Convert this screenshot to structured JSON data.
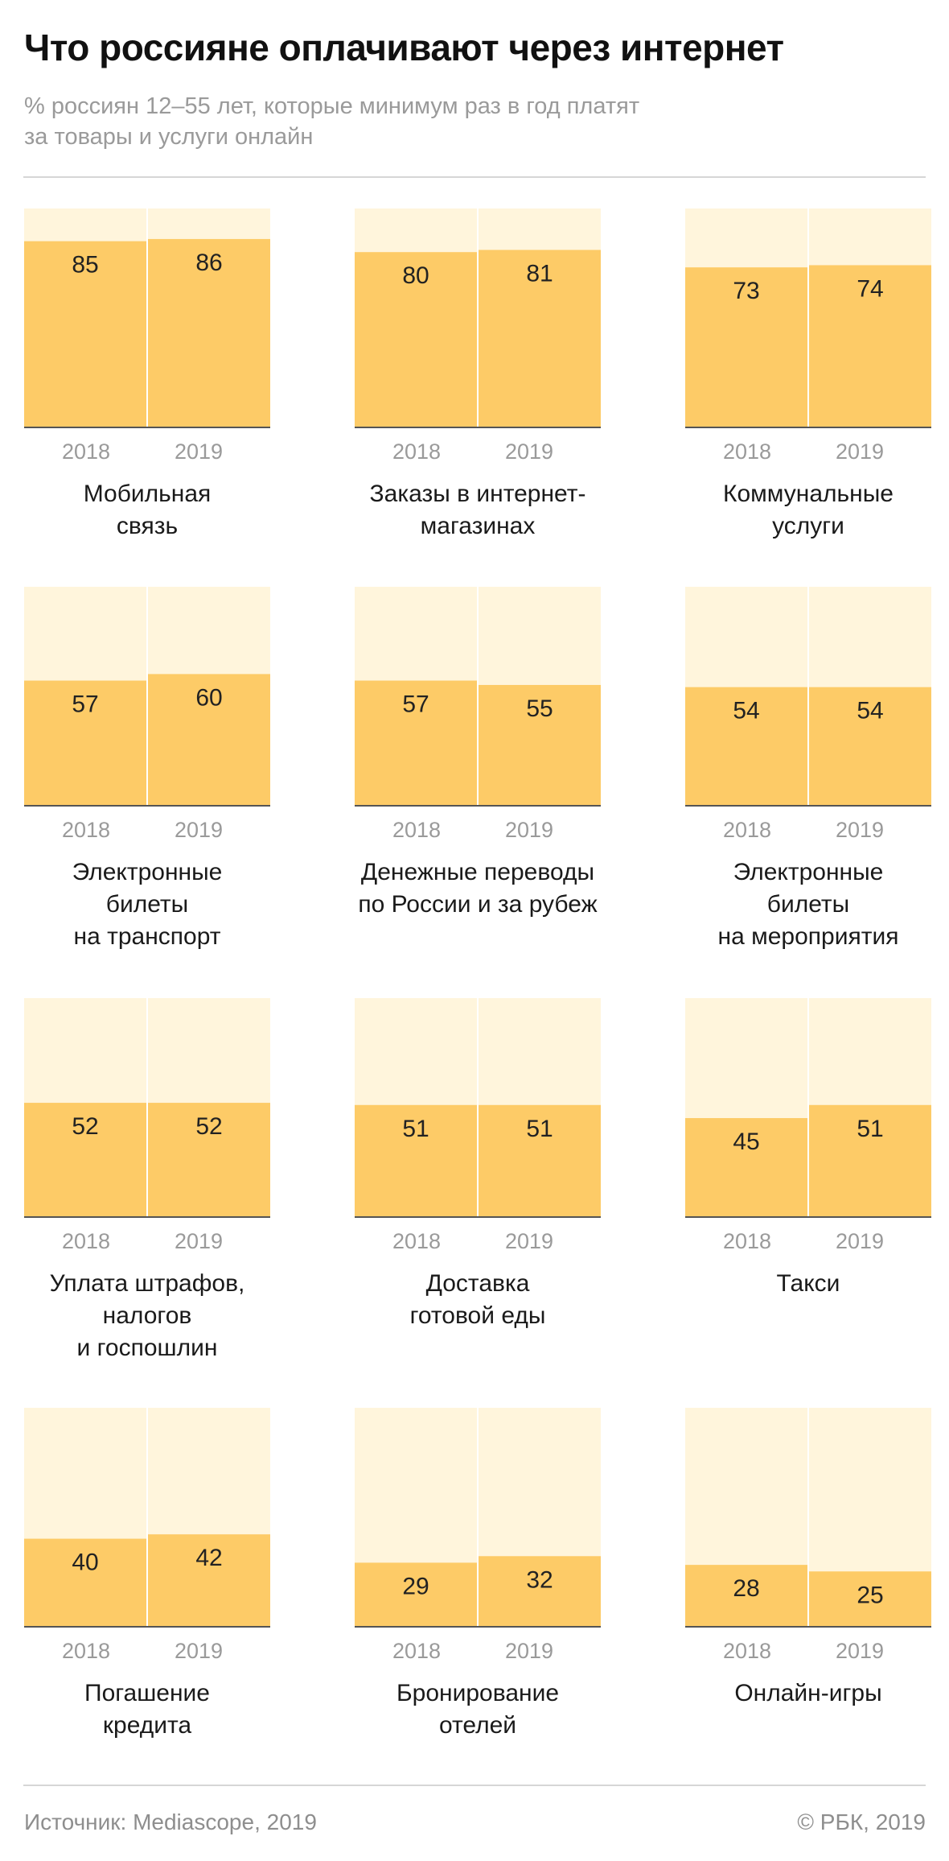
{
  "header": {
    "title": "Что россияне оплачивают через интернет",
    "subtitle": "% россиян 12–55 лет, которые минимум раз в год платят\nза товары и услуги онлайн"
  },
  "footer": {
    "source": "Источник: Mediascope, 2019",
    "copyright": "© РБК, 2019"
  },
  "colors": {
    "bar": "#fdcb67",
    "background_bar": "#fff5dc",
    "axis": "#555555",
    "muted_text": "#9a9a9a"
  },
  "chart_data": {
    "type": "bar",
    "layout": "small-multiples",
    "ylim": [
      0,
      100
    ],
    "categories": [
      "2018",
      "2019"
    ],
    "panels": [
      {
        "label": "Мобильная\nсвязь",
        "values": [
          85,
          86
        ]
      },
      {
        "label": "Заказы в интернет-\nмагазинах",
        "values": [
          80,
          81
        ]
      },
      {
        "label": "Коммунальные\nуслуги",
        "values": [
          73,
          74
        ]
      },
      {
        "label": "Электронные\nбилеты\nна транспорт",
        "values": [
          57,
          60
        ]
      },
      {
        "label": "Денежные переводы\nпо России и за рубеж",
        "values": [
          57,
          55
        ]
      },
      {
        "label": "Электронные\nбилеты\nна мероприятия",
        "values": [
          54,
          54
        ]
      },
      {
        "label": "Уплата штрафов,\nналогов\nи госпошлин",
        "values": [
          52,
          52
        ]
      },
      {
        "label": "Доставка\nготовой еды",
        "values": [
          51,
          51
        ]
      },
      {
        "label": "Такси",
        "values": [
          45,
          51
        ]
      },
      {
        "label": "Погашение\nкредита",
        "values": [
          40,
          42
        ]
      },
      {
        "label": "Бронирование\nотелей",
        "values": [
          29,
          32
        ]
      },
      {
        "label": "Онлайн-игры",
        "values": [
          28,
          25
        ]
      }
    ]
  }
}
